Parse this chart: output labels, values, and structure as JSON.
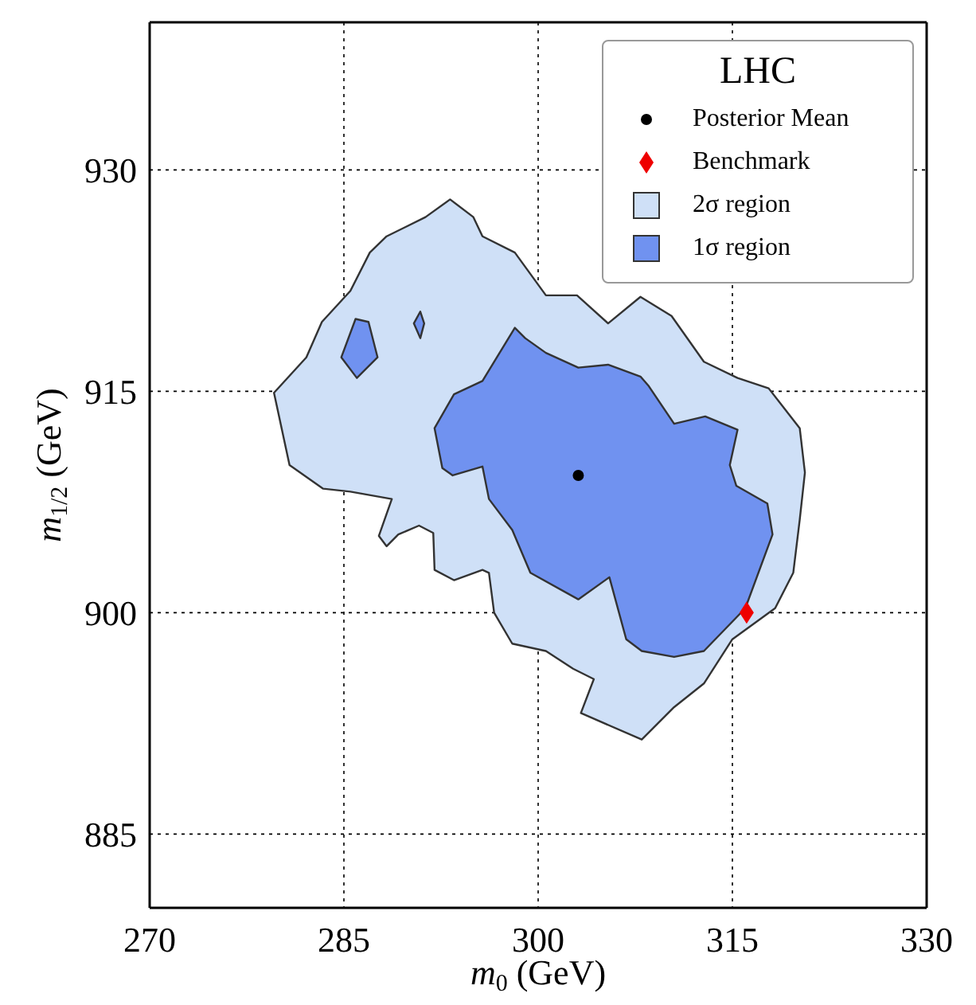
{
  "chart_data": {
    "type": "scatter",
    "xlabel": "m$_{0}$ (GeV)",
    "ylabel": "m$_{1/2}$ (GeV)",
    "legend_title": "LHC",
    "xlim": [
      270,
      330
    ],
    "xticks": [
      270,
      285,
      300,
      315,
      330
    ],
    "ylim": [
      880,
      940
    ],
    "yticks": [
      885,
      900,
      915,
      930
    ],
    "grid": true,
    "legend": "top right",
    "series": [
      {
        "name": "Posterior Mean",
        "type": "scatter",
        "marker": "circle",
        "color": "#000000",
        "x": [
          303.1
        ],
        "values": [
          909.3
        ]
      },
      {
        "name": "Benchmark",
        "type": "scatter",
        "marker": "diamond",
        "color": "#ee0000",
        "x": [
          316.1
        ],
        "values": [
          900.0
        ]
      },
      {
        "name": "2σ region",
        "type": "area",
        "color": "#cfe0f7",
        "x": [
          293.2,
          295.0,
          295.7,
          298.2,
          300.6,
          303.0,
          305.4,
          307.9,
          310.3,
          312.8,
          315.4,
          317.8,
          320.2,
          320.6,
          320.2,
          319.7,
          318.3,
          315.0,
          312.8,
          310.5,
          308.0,
          303.3,
          304.3,
          302.7,
          300.6,
          298.0,
          296.6,
          296.2,
          295.7,
          293.5,
          292.0,
          291.9,
          290.8,
          289.2,
          288.3,
          287.7,
          288.7,
          285.5,
          283.4,
          280.8,
          279.6,
          282.1,
          283.3,
          285.5,
          287.0,
          288.3,
          291.3
        ],
        "values": [
          928.0,
          926.8,
          925.5,
          924.4,
          921.5,
          921.5,
          919.6,
          921.4,
          920.1,
          917.0,
          915.9,
          915.2,
          912.5,
          909.5,
          906.3,
          902.7,
          900.3,
          898.2,
          895.2,
          893.6,
          891.4,
          893.2,
          895.5,
          896.2,
          897.4,
          897.9,
          900.0,
          902.7,
          902.9,
          902.2,
          902.9,
          905.4,
          905.9,
          905.3,
          904.5,
          905.2,
          907.7,
          908.2,
          908.4,
          910.0,
          914.9,
          917.3,
          919.7,
          921.8,
          924.4,
          925.5,
          926.8
        ]
      },
      {
        "name": "1σ region",
        "type": "area",
        "color": "#7092f0",
        "x": [
          298.2,
          295.7,
          293.5,
          292.0,
          292.6,
          293.4,
          295.7,
          296.2,
          298.0,
          299.4,
          303.1,
          305.5,
          306.8,
          308.0,
          310.5,
          312.8,
          316.0,
          318.1,
          317.7,
          315.3,
          314.8,
          315.4,
          312.9,
          310.5,
          308.5,
          307.9,
          305.4,
          303.1,
          300.6,
          299.0,
          null,
          285.9,
          286.9,
          287.6,
          286.0,
          284.8,
          null,
          290.9,
          291.2,
          290.9,
          290.4
        ],
        "values": [
          919.3,
          915.7,
          914.8,
          912.5,
          909.8,
          909.3,
          909.9,
          907.7,
          905.6,
          902.7,
          900.9,
          902.4,
          898.2,
          897.4,
          897.0,
          897.4,
          900.3,
          905.3,
          907.4,
          908.6,
          910.0,
          912.4,
          913.3,
          912.8,
          915.4,
          916.0,
          916.8,
          916.6,
          917.6,
          918.6,
          null,
          919.9,
          919.7,
          917.3,
          915.9,
          917.3,
          null,
          920.4,
          919.6,
          918.6,
          919.6
        ]
      }
    ]
  }
}
